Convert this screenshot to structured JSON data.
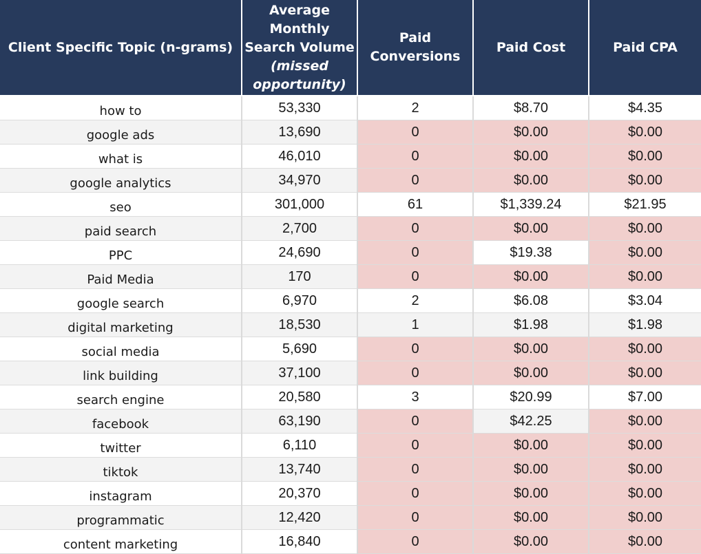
{
  "table": {
    "headers": {
      "topic": [
        "Client Specific Topic (n-grams)"
      ],
      "volume": [
        "Average",
        "Monthly",
        "Search Volume",
        "(missed",
        "opportunity)"
      ],
      "conversions": [
        "Paid",
        "Conversions"
      ],
      "cost": [
        "Paid Cost"
      ],
      "cpa": [
        "Paid CPA"
      ]
    },
    "colors": {
      "header_bg": "#273a5c",
      "header_text": "#ffffff",
      "highlight_pink": "#f1cfcd",
      "zebra_grey": "#f3f3f3"
    },
    "rows": [
      {
        "topic": "how to",
        "volume": "53,330",
        "conversions": "2",
        "cost": "$8.70",
        "cpa": "$4.35",
        "fill": [
          "white",
          "white",
          "white",
          "white",
          "white"
        ]
      },
      {
        "topic": "google ads",
        "volume": "13,690",
        "conversions": "0",
        "cost": "$0.00",
        "cpa": "$0.00",
        "fill": [
          "grey",
          "grey",
          "pink",
          "pink",
          "pink"
        ]
      },
      {
        "topic": "what is",
        "volume": "46,010",
        "conversions": "0",
        "cost": "$0.00",
        "cpa": "$0.00",
        "fill": [
          "white",
          "white",
          "pink",
          "pink",
          "pink"
        ]
      },
      {
        "topic": "google analytics",
        "volume": "34,970",
        "conversions": "0",
        "cost": "$0.00",
        "cpa": "$0.00",
        "fill": [
          "grey",
          "grey",
          "pink",
          "pink",
          "pink"
        ]
      },
      {
        "topic": "seo",
        "volume": "301,000",
        "conversions": "61",
        "cost": "$1,339.24",
        "cpa": "$21.95",
        "fill": [
          "white",
          "white",
          "white",
          "white",
          "white"
        ]
      },
      {
        "topic": "paid search",
        "volume": "2,700",
        "conversions": "0",
        "cost": "$0.00",
        "cpa": "$0.00",
        "fill": [
          "grey",
          "grey",
          "pink",
          "pink",
          "pink"
        ]
      },
      {
        "topic": "PPC",
        "volume": "24,690",
        "conversions": "0",
        "cost": "$19.38",
        "cpa": "$0.00",
        "fill": [
          "white",
          "white",
          "pink",
          "white",
          "pink"
        ]
      },
      {
        "topic": "Paid Media",
        "volume": "170",
        "conversions": "0",
        "cost": "$0.00",
        "cpa": "$0.00",
        "fill": [
          "grey",
          "grey",
          "pink",
          "pink",
          "pink"
        ]
      },
      {
        "topic": "google search",
        "volume": "6,970",
        "conversions": "2",
        "cost": "$6.08",
        "cpa": "$3.04",
        "fill": [
          "white",
          "white",
          "white",
          "white",
          "white"
        ]
      },
      {
        "topic": "digital marketing",
        "volume": "18,530",
        "conversions": "1",
        "cost": "$1.98",
        "cpa": "$1.98",
        "fill": [
          "grey",
          "grey",
          "grey",
          "grey",
          "grey"
        ]
      },
      {
        "topic": "social media",
        "volume": "5,690",
        "conversions": "0",
        "cost": "$0.00",
        "cpa": "$0.00",
        "fill": [
          "white",
          "white",
          "pink",
          "pink",
          "pink"
        ]
      },
      {
        "topic": "link building",
        "volume": "37,100",
        "conversions": "0",
        "cost": "$0.00",
        "cpa": "$0.00",
        "fill": [
          "grey",
          "grey",
          "pink",
          "pink",
          "pink"
        ]
      },
      {
        "topic": "search engine",
        "volume": "20,580",
        "conversions": "3",
        "cost": "$20.99",
        "cpa": "$7.00",
        "fill": [
          "white",
          "white",
          "white",
          "white",
          "white"
        ]
      },
      {
        "topic": "facebook",
        "volume": "63,190",
        "conversions": "0",
        "cost": "$42.25",
        "cpa": "$0.00",
        "fill": [
          "grey",
          "grey",
          "pink",
          "grey",
          "pink"
        ]
      },
      {
        "topic": "twitter",
        "volume": "6,110",
        "conversions": "0",
        "cost": "$0.00",
        "cpa": "$0.00",
        "fill": [
          "white",
          "white",
          "pink",
          "pink",
          "pink"
        ]
      },
      {
        "topic": "tiktok",
        "volume": "13,740",
        "conversions": "0",
        "cost": "$0.00",
        "cpa": "$0.00",
        "fill": [
          "grey",
          "grey",
          "pink",
          "pink",
          "pink"
        ]
      },
      {
        "topic": "instagram",
        "volume": "20,370",
        "conversions": "0",
        "cost": "$0.00",
        "cpa": "$0.00",
        "fill": [
          "white",
          "white",
          "pink",
          "pink",
          "pink"
        ]
      },
      {
        "topic": "programmatic",
        "volume": "12,420",
        "conversions": "0",
        "cost": "$0.00",
        "cpa": "$0.00",
        "fill": [
          "grey",
          "grey",
          "pink",
          "pink",
          "pink"
        ]
      },
      {
        "topic": "content marketing",
        "volume": "16,840",
        "conversions": "0",
        "cost": "$0.00",
        "cpa": "$0.00",
        "fill": [
          "white",
          "white",
          "pink",
          "pink",
          "pink"
        ]
      }
    ]
  }
}
